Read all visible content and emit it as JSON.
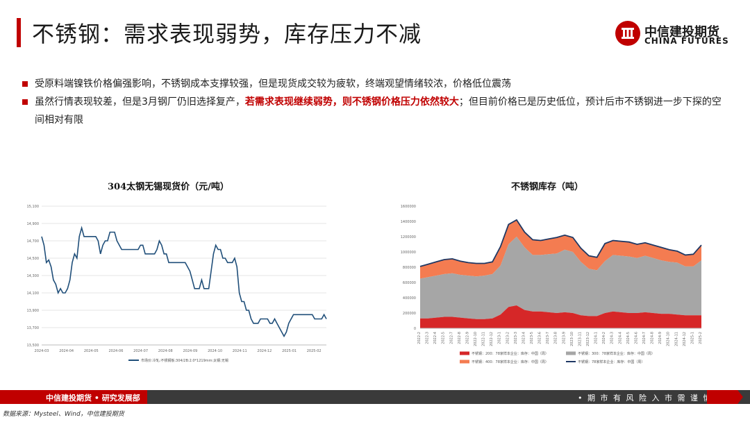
{
  "slide": {
    "title": "不锈钢：需求表现弱势，库存压力不减",
    "logo_cn": "中信建投期货",
    "logo_en": "CHINA FUTURES",
    "bullet1": "受原料端镍铁价格偏强影响，不锈钢成本支撑较强，但是现货成交较为疲软，终端观望情绪较浓，价格低位震荡",
    "bullet2_a": "虽然行情表现较差，但是3月钢厂仍旧选择复产，",
    "bullet2_hl": "若需求表现继续弱势，则不锈钢价格压力依然较大",
    "bullet2_b": "；但目前价格已是历史低位，预计后市不锈钢进一步下探的空间相对有限",
    "footer_left": "中信建投期货 • 研究发展部",
    "footer_right": "• 期 市 有 风 险    入 市 需 谨 慎",
    "source": "数据来源：Mysteel、Wind，中信建投期货",
    "accent_color": "#c00000"
  },
  "chart_data": [
    {
      "type": "line",
      "title": "304太钢无锡现货价（元/吨）",
      "x_ticks": [
        "2024-03",
        "2024-04",
        "2024-05",
        "2024-06",
        "2024-07",
        "2024-08",
        "2024-09",
        "2024-10",
        "2024-11",
        "2024-12",
        "2025-01",
        "2025-02"
      ],
      "y_ticks": [
        "13,500",
        "13,700",
        "13,900",
        "14,100",
        "14,300",
        "14,500",
        "14,700",
        "14,900",
        "15,100"
      ],
      "ylim": [
        13500,
        15100
      ],
      "legend_position": "bottom",
      "series": [
        {
          "name": "市场价:冷轧:不锈钢板:304/2B:2.0*1219mm:太钢:无锡",
          "color": "#1f4e79",
          "values": [
            14750,
            14650,
            14450,
            14480,
            14400,
            14250,
            14200,
            14100,
            14150,
            14100,
            14100,
            14150,
            14250,
            14450,
            14550,
            14500,
            14750,
            14850,
            14750,
            14750,
            14750,
            14750,
            14750,
            14750,
            14700,
            14550,
            14650,
            14700,
            14700,
            14800,
            14800,
            14800,
            14700,
            14650,
            14600,
            14600,
            14600,
            14600,
            14600,
            14600,
            14600,
            14600,
            14650,
            14650,
            14550,
            14550,
            14550,
            14550,
            14550,
            14600,
            14700,
            14650,
            14550,
            14550,
            14450,
            14450,
            14450,
            14450,
            14450,
            14450,
            14450,
            14450,
            14400,
            14350,
            14250,
            14150,
            14150,
            14150,
            14250,
            14150,
            14150,
            14150,
            14350,
            14550,
            14650,
            14600,
            14600,
            14500,
            14500,
            14450,
            14450,
            14450,
            14500,
            14400,
            14100,
            14000,
            14000,
            13900,
            13900,
            13800,
            13750,
            13750,
            13750,
            13800,
            13800,
            13800,
            13800,
            13750,
            13750,
            13800,
            13750,
            13700,
            13650,
            13600,
            13650,
            13750,
            13800,
            13850,
            13850,
            13850,
            13850,
            13850,
            13850,
            13850,
            13850,
            13850,
            13800,
            13800,
            13800,
            13800,
            13850,
            13800
          ]
        }
      ]
    },
    {
      "type": "area",
      "title": "不锈钢库存（吨）",
      "x_ticks": [
        "2022-2",
        "2022-3",
        "2022-4",
        "2022-5",
        "2022-7",
        "2022-8",
        "2022-9",
        "2022-10",
        "2022-11",
        "2022-12",
        "2023-1",
        "2023-2",
        "2023-3",
        "2023-4",
        "2023-5",
        "2023-6",
        "2023-7",
        "2023-8",
        "2023-9",
        "2023-10",
        "2023-11",
        "2023-12",
        "2024-1",
        "2024-2",
        "2024-3",
        "2024-4",
        "2024-5",
        "2024-6",
        "2024-7",
        "2024-8",
        "2024-9",
        "2024-10",
        "2024-11",
        "2024-12",
        "2025-1",
        "2025-2"
      ],
      "y_ticks": [
        "0",
        "200000",
        "400000",
        "600000",
        "800000",
        "1000000",
        "1200000",
        "1400000",
        "1600000"
      ],
      "ylim": [
        0,
        1600000
      ],
      "legend_position": "bottom",
      "series": [
        {
          "name": "不锈钢：200：78家样本企业：库存：中国（周）",
          "color": "#d62728",
          "values": [
            130000,
            130000,
            140000,
            150000,
            150000,
            140000,
            130000,
            120000,
            120000,
            130000,
            180000,
            280000,
            300000,
            240000,
            220000,
            220000,
            210000,
            200000,
            210000,
            200000,
            170000,
            160000,
            160000,
            200000,
            220000,
            210000,
            200000,
            200000,
            210000,
            200000,
            190000,
            190000,
            180000,
            170000,
            170000,
            170000
          ]
        },
        {
          "name": "不锈钢：300：78家样本企业：库存：中国（周）",
          "color": "#a6a6a6",
          "values": [
            520000,
            540000,
            550000,
            560000,
            570000,
            560000,
            560000,
            560000,
            570000,
            580000,
            640000,
            820000,
            900000,
            820000,
            740000,
            740000,
            760000,
            780000,
            820000,
            800000,
            700000,
            620000,
            600000,
            680000,
            740000,
            740000,
            740000,
            720000,
            740000,
            720000,
            700000,
            680000,
            680000,
            640000,
            640000,
            720000
          ]
        },
        {
          "name": "不锈钢：400：78家样本企业：库存：中国（周）",
          "color": "#f47c51",
          "values": [
            160000,
            170000,
            180000,
            190000,
            190000,
            180000,
            170000,
            170000,
            160000,
            160000,
            250000,
            260000,
            220000,
            200000,
            200000,
            190000,
            200000,
            210000,
            190000,
            190000,
            180000,
            170000,
            170000,
            230000,
            190000,
            190000,
            190000,
            180000,
            170000,
            170000,
            170000,
            160000,
            150000,
            150000,
            160000,
            200000
          ]
        },
        {
          "name": "不锈钢：78家样本企业：库存：中国（周）",
          "color": "#1f3864",
          "values": [
            810000,
            840000,
            870000,
            900000,
            910000,
            880000,
            860000,
            850000,
            850000,
            870000,
            1070000,
            1360000,
            1420000,
            1260000,
            1160000,
            1150000,
            1170000,
            1190000,
            1220000,
            1190000,
            1050000,
            950000,
            930000,
            1110000,
            1150000,
            1140000,
            1130000,
            1100000,
            1120000,
            1090000,
            1060000,
            1030000,
            1010000,
            960000,
            970000,
            1090000
          ]
        }
      ]
    }
  ]
}
